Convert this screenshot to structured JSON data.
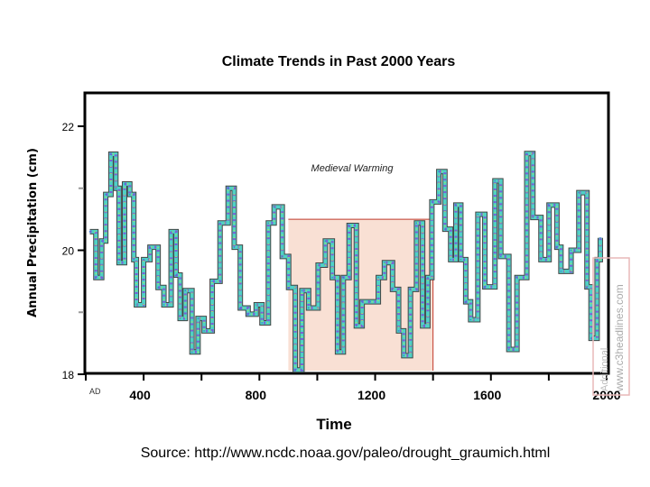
{
  "chart_data": {
    "type": "line",
    "title": "Climate Trends in Past 2000 Years",
    "xlabel": "Time",
    "ylabel": "Annual Precipitation (cm)",
    "xlim": [
      200,
      2000
    ],
    "ylim": [
      18,
      22.6
    ],
    "x_ticks": [
      400,
      800,
      1200,
      1600,
      2000
    ],
    "x_tick_labels": [
      "400",
      "800",
      "1200",
      "1600",
      "2000"
    ],
    "x_origin_label": "AD",
    "y_ticks": [
      18,
      20,
      22
    ],
    "y_tick_labels": [
      "18",
      "20",
      "22"
    ],
    "grid": false,
    "annotation": {
      "label": "Medieval Warming",
      "x_range": [
        900,
        1400
      ],
      "y_top": 20.5,
      "color": "#f9e0d4",
      "border_color": "#c0392b"
    },
    "series": [
      {
        "x": [
          214,
          235,
          255,
          269,
          287,
          304,
          315,
          334,
          352,
          366,
          375,
          400,
          422,
          450,
          470,
          495,
          512,
          526,
          544,
          567,
          588,
          609,
          637,
          664,
          692,
          713,
          734,
          761,
          789,
          809,
          831,
          851,
          879,
          901,
          924,
          947,
          970,
          1003,
          1028,
          1052,
          1070,
          1090,
          1110,
          1135,
          1155,
          1183,
          1211,
          1232,
          1260,
          1281,
          1299,
          1322,
          1343,
          1364,
          1382,
          1396,
          1420,
          1441,
          1461,
          1479,
          1496,
          1513,
          1530,
          1555,
          1579,
          1614,
          1634,
          1662,
          1690,
          1724,
          1745,
          1773,
          1801,
          1828,
          1842,
          1877,
          1904,
          1932,
          1946,
          1967,
          1978
        ],
        "y": [
          20.3,
          19.56,
          20.15,
          20.9,
          21.55,
          21.0,
          19.8,
          21.07,
          20.9,
          19.85,
          19.12,
          19.85,
          20.05,
          19.4,
          19.12,
          20.3,
          19.6,
          18.9,
          19.35,
          18.36,
          18.9,
          18.7,
          19.5,
          20.44,
          21.0,
          20.05,
          19.07,
          18.97,
          19.12,
          18.83,
          20.44,
          20.7,
          19.9,
          19.4,
          18.07,
          19.35,
          19.07,
          19.76,
          20.15,
          19.56,
          18.36,
          19.56,
          20.4,
          18.78,
          19.17,
          19.17,
          19.56,
          19.8,
          19.37,
          18.7,
          18.3,
          19.37,
          20.44,
          18.78,
          19.56,
          20.78,
          21.27,
          20.34,
          19.85,
          20.73,
          19.85,
          19.17,
          18.88,
          20.58,
          19.41,
          21.12,
          19.9,
          18.4,
          19.56,
          21.56,
          20.53,
          19.85,
          20.73,
          20.05,
          19.66,
          20.0,
          20.93,
          19.41,
          18.58,
          19.85,
          20.2
        ]
      }
    ]
  },
  "source": "Source: http://www.ncdc.noaa.gov/paleo/drought_graumich.html",
  "watermark": [
    "www.c3headlines.com",
    "Additional"
  ]
}
